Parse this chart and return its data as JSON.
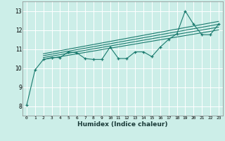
{
  "xlabel": "Humidex (Indice chaleur)",
  "bg_color": "#cceee8",
  "grid_color": "#ffffff",
  "line_color": "#1a7a6e",
  "xlim": [
    -0.5,
    23.5
  ],
  "ylim": [
    7.5,
    13.5
  ],
  "xticks": [
    0,
    1,
    2,
    3,
    4,
    5,
    6,
    7,
    8,
    9,
    10,
    11,
    12,
    13,
    14,
    15,
    16,
    17,
    18,
    19,
    20,
    21,
    22,
    23
  ],
  "yticks": [
    8,
    9,
    10,
    11,
    12,
    13
  ],
  "main_x": [
    0,
    1,
    2,
    3,
    4,
    5,
    6,
    7,
    8,
    9,
    10,
    11,
    12,
    13,
    14,
    15,
    16,
    17,
    18,
    19,
    20,
    21,
    22,
    23
  ],
  "main_y": [
    8.05,
    9.9,
    10.45,
    10.55,
    10.55,
    10.85,
    10.8,
    10.5,
    10.45,
    10.45,
    11.1,
    10.5,
    10.5,
    10.85,
    10.85,
    10.6,
    11.1,
    11.5,
    11.8,
    13.0,
    12.3,
    11.75,
    11.75,
    12.3
  ],
  "line1_x": [
    2,
    23
  ],
  "line1_y": [
    10.45,
    12.0
  ],
  "line2_x": [
    2,
    23
  ],
  "line2_y": [
    10.55,
    12.15
  ],
  "line3_x": [
    2,
    23
  ],
  "line3_y": [
    10.65,
    12.3
  ],
  "line4_x": [
    2,
    23
  ],
  "line4_y": [
    10.75,
    12.45
  ]
}
